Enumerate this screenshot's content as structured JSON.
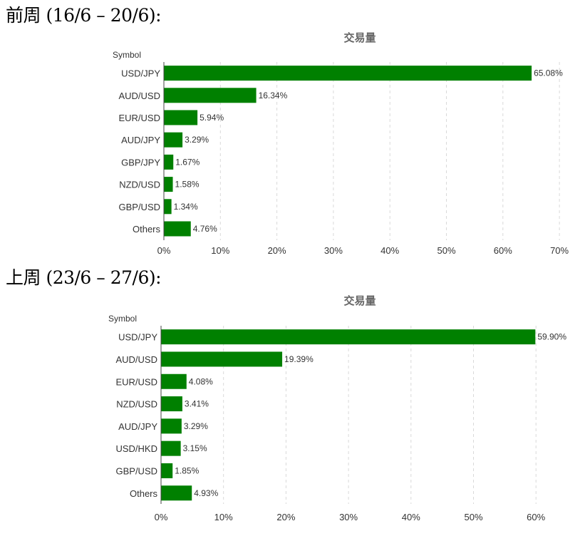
{
  "headings": {
    "week1": "前周 (16/6 – 20/6):",
    "week2": "上周 (23/6 – 27/6):"
  },
  "chart_data": [
    {
      "type": "bar",
      "orientation": "horizontal",
      "title": "交易量",
      "ylabel": "Symbol",
      "xlim": [
        0,
        70
      ],
      "x_ticks": [
        "0%",
        "10%",
        "20%",
        "30%",
        "40%",
        "50%",
        "60%",
        "70%"
      ],
      "categories": [
        "USD/JPY",
        "AUD/USD",
        "EUR/USD",
        "AUD/JPY",
        "GBP/JPY",
        "NZD/USD",
        "GBP/USD",
        "Others"
      ],
      "values": [
        65.08,
        16.34,
        5.94,
        3.29,
        1.67,
        1.58,
        1.34,
        4.76
      ],
      "data_labels": [
        "65.08%",
        "16.34%",
        "5.94%",
        "3.29%",
        "1.67%",
        "1.58%",
        "1.34%",
        "4.76%"
      ],
      "grid": true,
      "bar_color": "#008000"
    },
    {
      "type": "bar",
      "orientation": "horizontal",
      "title": "交易量",
      "ylabel": "Symbol",
      "xlim": [
        0,
        60
      ],
      "x_ticks": [
        "0%",
        "10%",
        "20%",
        "30%",
        "40%",
        "50%",
        "60%"
      ],
      "categories": [
        "USD/JPY",
        "AUD/USD",
        "EUR/USD",
        "NZD/USD",
        "AUD/JPY",
        "USD/HKD",
        "GBP/USD",
        "Others"
      ],
      "values": [
        59.9,
        19.39,
        4.08,
        3.41,
        3.29,
        3.15,
        1.85,
        4.93
      ],
      "data_labels": [
        "59.90%",
        "19.39%",
        "4.08%",
        "3.41%",
        "3.29%",
        "3.15%",
        "1.85%",
        "4.93%"
      ],
      "grid": true,
      "bar_color": "#008000"
    }
  ]
}
